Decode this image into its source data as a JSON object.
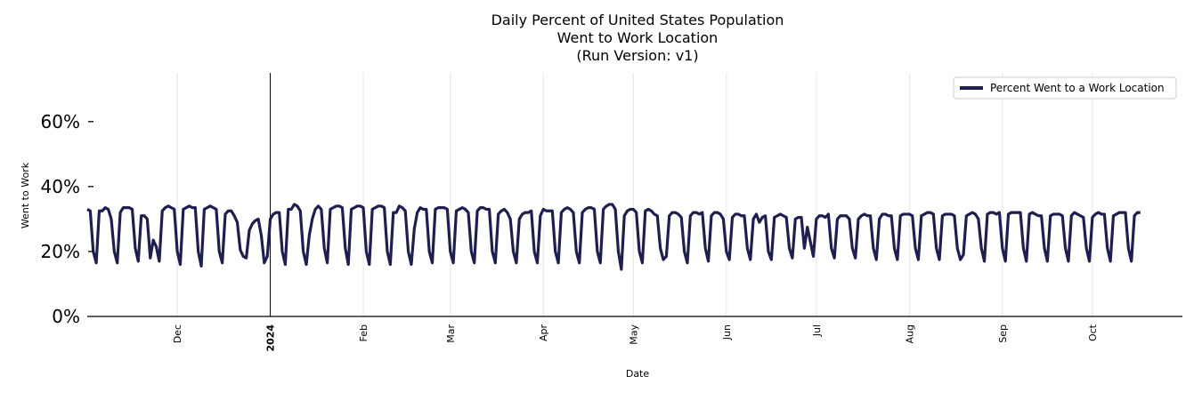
{
  "chart_data": {
    "type": "line",
    "title": [
      "Daily Percent of United States Population",
      "Went to Work Location",
      "(Run Version: v1)"
    ],
    "xlabel": "Date",
    "ylabel": "Went to Work",
    "ylim": [
      0,
      75
    ],
    "yticks": [
      0,
      20,
      40,
      60
    ],
    "ytick_format": "{v}%",
    "x_start": "2023-11-01",
    "x_end": "2024-10-31",
    "xticks": [
      {
        "label": "Dec",
        "date": "2023-12-01",
        "bold": false
      },
      {
        "label": "2024",
        "date": "2024-01-01",
        "bold": true
      },
      {
        "label": "Feb",
        "date": "2024-02-01",
        "bold": false
      },
      {
        "label": "Mar",
        "date": "2024-03-01",
        "bold": false
      },
      {
        "label": "Apr",
        "date": "2024-04-01",
        "bold": false
      },
      {
        "label": "May",
        "date": "2024-05-01",
        "bold": false
      },
      {
        "label": "Jun",
        "date": "2024-06-01",
        "bold": false
      },
      {
        "label": "Jul",
        "date": "2024-07-01",
        "bold": false
      },
      {
        "label": "Aug",
        "date": "2024-08-01",
        "bold": false
      },
      {
        "label": "Sep",
        "date": "2024-09-01",
        "bold": false
      },
      {
        "label": "Oct",
        "date": "2024-10-01",
        "bold": false
      }
    ],
    "vline_date": "2024-01-01",
    "grid": "vertical",
    "legend_position": "top-right",
    "series": [
      {
        "name": "Percent Went to a Work Location",
        "color": "#1f1f4f",
        "start_date": "2023-11-01",
        "values": [
          33,
          32.5,
          20,
          16.5,
          32.5,
          32.5,
          33.5,
          33,
          30,
          20,
          16.5,
          32,
          33.5,
          33.5,
          33.5,
          33,
          21,
          17,
          31,
          31,
          30,
          18,
          23.5,
          21.5,
          17,
          32.5,
          33.5,
          34,
          33.5,
          33,
          20,
          16,
          33,
          33.5,
          34,
          33.5,
          33.5,
          20,
          15.5,
          33,
          33.5,
          34,
          33.5,
          33,
          20,
          16.5,
          31.5,
          32.5,
          32.5,
          31,
          29,
          20.5,
          18.5,
          18,
          26.5,
          28.5,
          29.5,
          30,
          25,
          16.5,
          18.5,
          30,
          31.5,
          32,
          32,
          20,
          16,
          33,
          33,
          34.5,
          34,
          32.5,
          20,
          16,
          25,
          30,
          33,
          34,
          33,
          21,
          16.5,
          33,
          33.5,
          34,
          34,
          33.5,
          21,
          16,
          33,
          33.5,
          34,
          34,
          33.5,
          20,
          16,
          33,
          33.5,
          34,
          34,
          33.5,
          20,
          16,
          32,
          32,
          34,
          33.5,
          32.5,
          20,
          16,
          27,
          32,
          33.5,
          33,
          33,
          20,
          16.5,
          33,
          33.5,
          33.5,
          33.5,
          33,
          20,
          16.5,
          32.5,
          33,
          33.5,
          33,
          32,
          20,
          16.5,
          32.5,
          33.5,
          33.5,
          33,
          33,
          20,
          16.5,
          31.5,
          32.5,
          33,
          32,
          30,
          20,
          16.5,
          30,
          31.5,
          32,
          32,
          32.5,
          20,
          16.5,
          31,
          33,
          32.5,
          32.5,
          32.5,
          20,
          16.5,
          32,
          33,
          33.5,
          33,
          32,
          20,
          16.5,
          32,
          33,
          33.5,
          33.5,
          33,
          20,
          16.5,
          33,
          34,
          34.5,
          34.5,
          33,
          20,
          14.5,
          31,
          32.5,
          33,
          33,
          32,
          20,
          16.5,
          32.5,
          33,
          32.5,
          31.5,
          31,
          21,
          17.5,
          18.5,
          31,
          32,
          32,
          31.5,
          30.5,
          20,
          16.5,
          31,
          32,
          32,
          31.5,
          32,
          21,
          17,
          31,
          32,
          32,
          31.5,
          30,
          20,
          17.5,
          30.5,
          31.5,
          31.5,
          31,
          31,
          21,
          17.5,
          30,
          31.5,
          29,
          30.5,
          31,
          20,
          17.5,
          30.5,
          31,
          31.5,
          31,
          30.5,
          21,
          18,
          30,
          30.5,
          30.5,
          21,
          27.5,
          23,
          18.5,
          30,
          31,
          31,
          30.5,
          31.5,
          21,
          18,
          30,
          31,
          31,
          31,
          30,
          21,
          18,
          30,
          31,
          31.5,
          31,
          31,
          21,
          17.5,
          30,
          31.5,
          31.5,
          31,
          31,
          21,
          17.5,
          31,
          31.5,
          31.5,
          31.5,
          31,
          21,
          17.5,
          31,
          31.5,
          32,
          32,
          31.5,
          21,
          17.5,
          31,
          31.5,
          31.5,
          31.5,
          31,
          21,
          17.5,
          19,
          31,
          31.5,
          32,
          31.5,
          30,
          21,
          17,
          31.5,
          32,
          32,
          31.5,
          32,
          21,
          17,
          31.5,
          32,
          32,
          32,
          32,
          21,
          17,
          31.5,
          32,
          31.5,
          31,
          31,
          21,
          17,
          31,
          31.5,
          31.5,
          31.5,
          31,
          21,
          17,
          31,
          32,
          31.5,
          31,
          30.5,
          21,
          17,
          30.5,
          31.5,
          32,
          31.5,
          31.5,
          21,
          17,
          31,
          31.5,
          32,
          32,
          32,
          21,
          17,
          31,
          32,
          32
        ]
      }
    ]
  }
}
